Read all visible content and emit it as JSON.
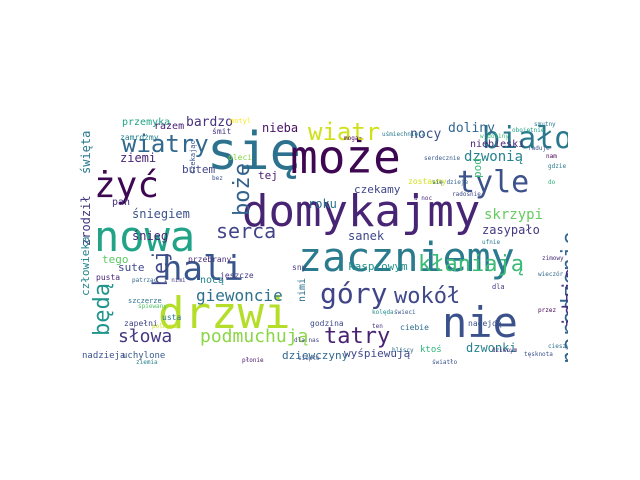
{
  "words": [
    {
      "text": "się",
      "color": "#2c728e"
    },
    {
      "text": "może",
      "color": "#3e0751"
    },
    {
      "text": "domykajmy",
      "color": "#482475"
    },
    {
      "text": "zaczniemy",
      "color": "#2b7b8e"
    },
    {
      "text": "nie",
      "color": "#3b518b"
    },
    {
      "text": "drzwi",
      "color": "#b5de2b"
    },
    {
      "text": "nowa",
      "color": "#20a386"
    },
    {
      "text": "żyć",
      "color": "#3e0751"
    },
    {
      "text": "biało",
      "color": "#2a788e"
    },
    {
      "text": "hali",
      "color": "#39568c"
    },
    {
      "text": "tyle",
      "color": "#3b528b"
    },
    {
      "text": "góry",
      "color": "#404588"
    },
    {
      "text": "wiatr",
      "color": "#d0e11c"
    },
    {
      "text": "wiatry",
      "color": "#31688e"
    },
    {
      "text": "serca",
      "color": "#414487"
    },
    {
      "text": "narodzenie",
      "color": "#32648e"
    },
    {
      "text": "tatry",
      "color": "#482173"
    },
    {
      "text": "będą",
      "color": "#1f958b"
    },
    {
      "text": "boże",
      "color": "#33628d"
    },
    {
      "text": "wokół",
      "color": "#3f4889"
    },
    {
      "text": "kłaniają",
      "color": "#3bbb75"
    },
    {
      "text": "podmuchują",
      "color": "#8bd646"
    },
    {
      "text": "słowa",
      "color": "#453781"
    },
    {
      "text": "idzie",
      "color": "#46327e"
    },
    {
      "text": "hej",
      "color": "#3e4989"
    },
    {
      "text": "giewoncie",
      "color": "#2d708e"
    },
    {
      "text": "dzwonią",
      "color": "#26828e"
    },
    {
      "text": "skrzypi",
      "color": "#65cb5e"
    },
    {
      "text": "doliny",
      "color": "#32658e"
    },
    {
      "text": "nocy",
      "color": "#3c4f8a"
    },
    {
      "text": "bardzo",
      "color": "#46327e"
    },
    {
      "text": "nieba",
      "color": "#471063"
    },
    {
      "text": "ziemi",
      "color": "#482475"
    },
    {
      "text": "śniegiem",
      "color": "#3b528b"
    },
    {
      "text": "roku",
      "color": "#2d708e"
    },
    {
      "text": "czekamy",
      "color": "#404588"
    },
    {
      "text": "zasypało",
      "color": "#443a83"
    },
    {
      "text": "sanek",
      "color": "#3f4788"
    },
    {
      "text": "kasprowym",
      "color": "#21918c"
    },
    {
      "text": "dzwonki",
      "color": "#26828e"
    },
    {
      "text": "wyśpiewują",
      "color": "#3f4889"
    },
    {
      "text": "dziewczyny",
      "color": "#31688e"
    },
    {
      "text": "śnieg",
      "color": "#482878"
    },
    {
      "text": "święta",
      "color": "#2a788e"
    },
    {
      "text": "zrodził",
      "color": "#453882"
    },
    {
      "text": "człowieka",
      "color": "#25848e"
    },
    {
      "text": "pan",
      "color": "#472d7b"
    },
    {
      "text": "sute",
      "color": "#3f4788"
    },
    {
      "text": "tego",
      "color": "#5cc863"
    },
    {
      "text": "przemyka",
      "color": "#20a486"
    },
    {
      "text": "pod",
      "color": "#3aba76"
    },
    {
      "text": "tej",
      "color": "#481a6c"
    },
    {
      "text": "butem",
      "color": "#404688"
    },
    {
      "text": "razem",
      "color": "#481b6d"
    },
    {
      "text": "nocą",
      "color": "#25838e"
    },
    {
      "text": "nimi",
      "color": "#2c728e"
    },
    {
      "text": "niebieski",
      "color": "#482374"
    },
    {
      "text": "nadzieja",
      "color": "#3b518b"
    },
    {
      "text": "uchylone",
      "color": "#375a8c"
    },
    {
      "text": "zapełni",
      "color": "#414487"
    },
    {
      "text": "godzina",
      "color": "#3e4a89"
    },
    {
      "text": "ciebie",
      "color": "#2e6e8e"
    },
    {
      "text": "ktoś",
      "color": "#2fb47c"
    },
    {
      "text": "nadejdą",
      "color": "#3b528b"
    },
    {
      "text": "przebrany",
      "color": "#472c7a"
    },
    {
      "text": "usta",
      "color": "#2a778e"
    },
    {
      "text": "sny",
      "color": "#443a83"
    },
    {
      "text": "jeszcze",
      "color": "#453781"
    },
    {
      "text": "zostawmy",
      "color": "#d2e21b"
    },
    {
      "text": "śmit",
      "color": "#46337e"
    },
    {
      "text": "zamrożmy",
      "color": "#25848e"
    },
    {
      "text": "szczerze",
      "color": "#2d718e"
    },
    {
      "text": "pusta",
      "color": "#482576"
    },
    {
      "text": "motyl",
      "color": "#fde725"
    },
    {
      "text": "dla",
      "color": "#453882"
    },
    {
      "text": "oleci",
      "color": "#89d548"
    },
    {
      "text": "bez",
      "color": "#3b528b"
    },
    {
      "text": "czekając",
      "color": "#39568c"
    },
    {
      "text": "ufnie",
      "color": "#2a778e"
    },
    {
      "text": "serdecznie",
      "color": "#38598c"
    },
    {
      "text": "mogą",
      "color": "#440154"
    },
    {
      "text": "śpiewany",
      "color": "#52c569"
    },
    {
      "text": "radośnie",
      "color": "#3e4a89"
    },
    {
      "text": "w noc",
      "color": "#482878"
    },
    {
      "text": "się dzieje",
      "color": "#33638d"
    },
    {
      "text": "uśmiechnięta",
      "color": "#2a788e"
    },
    {
      "text": "w doliny",
      "color": "#3dbc74"
    },
    {
      "text": "obojętnie",
      "color": "#1fa088"
    },
    {
      "text": "raduje",
      "color": "#39558c"
    },
    {
      "text": "nam",
      "color": "#440154"
    },
    {
      "text": "do",
      "color": "#2fb47c"
    },
    {
      "text": "zimowy",
      "color": "#472a7a"
    },
    {
      "text": "wieczór",
      "color": "#31688e"
    },
    {
      "text": "ten",
      "color": "#46337e"
    },
    {
      "text": "dla nas",
      "color": "#414487"
    },
    {
      "text": "bliscy",
      "color": "#2f6c8e"
    },
    {
      "text": "dziwnym",
      "color": "#472d7b"
    },
    {
      "text": "cieszy",
      "color": "#2e6e8e"
    },
    {
      "text": "przez",
      "color": "#440154"
    },
    {
      "text": "patrząc",
      "color": "#31678e"
    },
    {
      "text": "z nimi",
      "color": "#443983"
    },
    {
      "text": "polnymi",
      "color": "#cae11f"
    },
    {
      "text": "ziemia",
      "color": "#26828e"
    },
    {
      "text": "płonie",
      "color": "#481769"
    },
    {
      "text": "ciepło",
      "color": "#3a548c"
    },
    {
      "text": "świeci",
      "color": "#3b528b"
    },
    {
      "text": "kolęda",
      "color": "#228d8d"
    },
    {
      "text": "światło",
      "color": "#3b528b"
    },
    {
      "text": "tęsknota",
      "color": "#3b528b"
    },
    {
      "text": "smutny",
      "color": "#2a788e"
    },
    {
      "text": "gdzie",
      "color": "#2a788e"
    }
  ]
}
